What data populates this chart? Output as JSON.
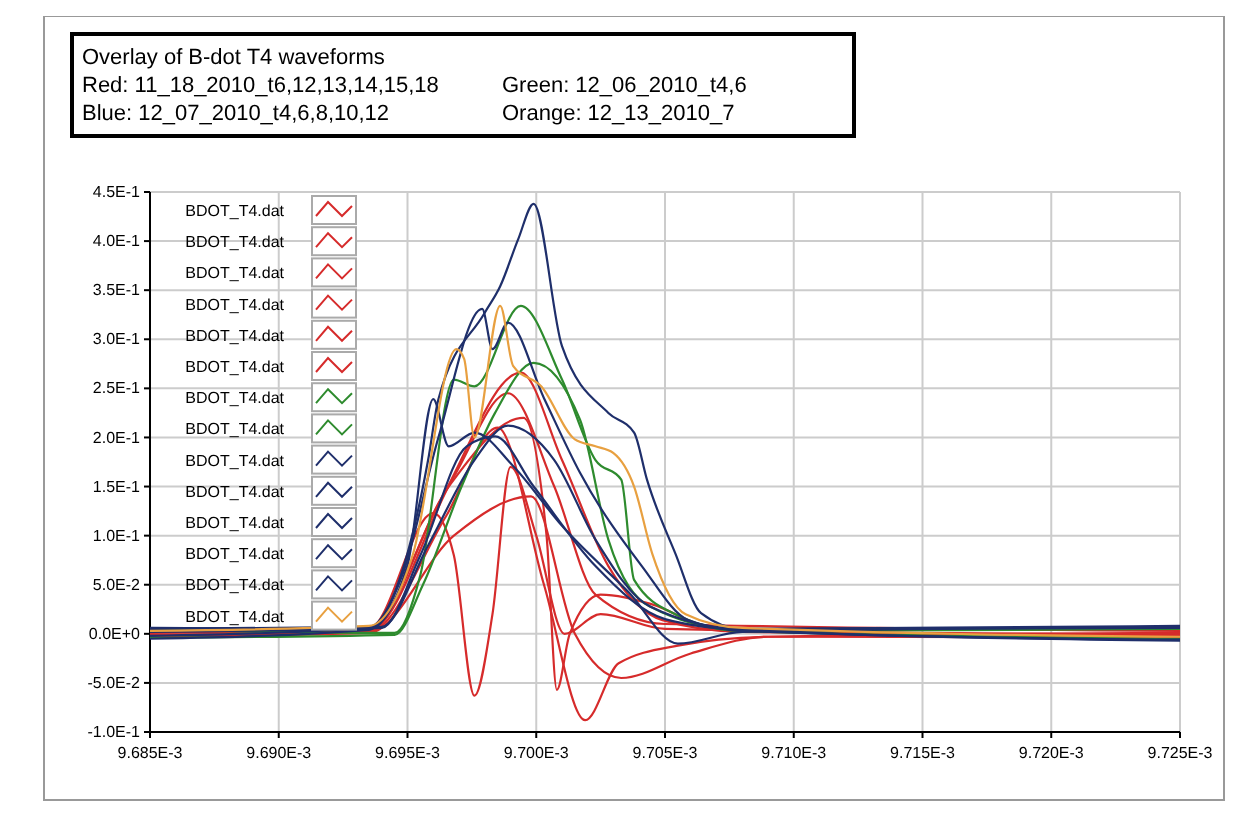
{
  "chart_data": {
    "type": "line",
    "title": "Overlay of B-dot T4 waveforms",
    "annotations": [
      "Red: 11_18_2010_t6,12,13,14,15,18",
      "Green: 12_06_2010_t4,6",
      "Blue: 12_07_2010_t4,6,8,10,12",
      "Orange: 12_13_2010_7"
    ],
    "xlim": [
      0.009685,
      0.009725
    ],
    "xticks": [
      {
        "value": 0.009685,
        "label": "9.685E-3"
      },
      {
        "value": 0.00969,
        "label": "9.690E-3"
      },
      {
        "value": 0.009695,
        "label": "9.695E-3"
      },
      {
        "value": 0.0097,
        "label": "9.700E-3"
      },
      {
        "value": 0.009705,
        "label": "9.705E-3"
      },
      {
        "value": 0.00971,
        "label": "9.710E-3"
      },
      {
        "value": 0.009715,
        "label": "9.715E-3"
      },
      {
        "value": 0.00972,
        "label": "9.720E-3"
      },
      {
        "value": 0.009725,
        "label": "9.725E-3"
      }
    ],
    "ylim": [
      -0.1,
      0.45
    ],
    "yticks": [
      {
        "value": 0.45,
        "label": "4.5E-1"
      },
      {
        "value": 0.4,
        "label": "4.0E-1"
      },
      {
        "value": 0.35,
        "label": "3.5E-1"
      },
      {
        "value": 0.3,
        "label": "3.0E-1"
      },
      {
        "value": 0.25,
        "label": "2.5E-1"
      },
      {
        "value": 0.2,
        "label": "2.0E-1"
      },
      {
        "value": 0.15,
        "label": "1.5E-1"
      },
      {
        "value": 0.1,
        "label": "1.0E-1"
      },
      {
        "value": 0.05,
        "label": "5.0E-2"
      },
      {
        "value": 0,
        "label": "0.0E+0"
      },
      {
        "value": -0.05,
        "label": "-5.0E-2"
      },
      {
        "value": -0.1,
        "label": "-1.0E-1"
      }
    ],
    "grid": true,
    "legend": "top left",
    "marker": "none",
    "line_style": "solid",
    "series": [
      {
        "name": "BDOT_T4.dat",
        "color": "#d62b2b",
        "x": [
          0.009685,
          0.0096935,
          0.0096963,
          0.0096994,
          0.009701,
          0.0097028,
          0.0097049,
          0.009708,
          0.009725
        ],
        "values": [
          0.002,
          0.004,
          0.137,
          0.266,
          0.177,
          0.069,
          0.014,
          0.002,
          -0.002
        ]
      },
      {
        "name": "BDOT_T4.dat",
        "color": "#d62b2b",
        "x": [
          0.009685,
          0.0096935,
          0.0096968,
          0.0096989,
          0.0097007,
          0.0097023,
          0.009705,
          0.009725
        ],
        "values": [
          -0.002,
          0.003,
          0.16,
          0.245,
          0.15,
          0.04,
          0.01,
          0.003
        ]
      },
      {
        "name": "BDOT_T4.dat",
        "color": "#d62b2b",
        "x": [
          0.009685,
          0.0096935,
          0.009696,
          0.0096968,
          0.0096976,
          0.0096983,
          0.009699,
          0.0097,
          0.0097011,
          0.0097025,
          0.009705,
          0.009725
        ],
        "values": [
          0.001,
          0.005,
          0.123,
          0.08,
          -0.063,
          0.02,
          0.17,
          0.1,
          0,
          0.02,
          0.005,
          -0.001
        ]
      },
      {
        "name": "BDOT_T4.dat",
        "color": "#d62b2b",
        "x": [
          0.009685,
          0.0096935,
          0.0096965,
          0.0096985,
          0.0097003,
          0.0097019,
          0.0097032,
          0.0097055,
          0.009709,
          0.009725
        ],
        "values": [
          -0.001,
          0.002,
          0.12,
          0.21,
          0.05,
          -0.088,
          -0.03,
          -0.012,
          -0.003,
          0.001
        ]
      },
      {
        "name": "BDOT_T4.dat",
        "color": "#d62b2b",
        "x": [
          0.009685,
          0.0096935,
          0.0096966,
          0.0096995,
          0.0097004,
          0.0097008,
          0.0097013,
          0.0097025,
          0.0097045,
          0.009707,
          0.009725
        ],
        "values": [
          0.003,
          0.006,
          0.15,
          0.22,
          0.1,
          -0.057,
          0,
          0.04,
          0.03,
          0.005,
          0.004
        ]
      },
      {
        "name": "BDOT_T4.dat",
        "color": "#d62b2b",
        "x": [
          0.009685,
          0.0096935,
          0.0096968,
          0.0096998,
          0.0097015,
          0.0097033,
          0.009706,
          0.009709,
          0.009725
        ],
        "values": [
          -0.003,
          0.001,
          0.1,
          0.14,
          0,
          -0.045,
          -0.02,
          -0.003,
          -0.004
        ]
      },
      {
        "name": "BDOT_T4.dat",
        "color": "#2e8b2e",
        "x": [
          0.009685,
          0.0096945,
          0.0096955,
          0.0096968,
          0.0096976,
          0.0096994,
          0.009701,
          0.0097023,
          0.0097033,
          0.0097038,
          0.0097054,
          0.009708,
          0.009725
        ],
        "values": [
          0.004,
          0.001,
          0.06,
          0.259,
          0.252,
          0.334,
          0.259,
          0.177,
          0.157,
          0.055,
          0.02,
          0.003,
          0.005
        ]
      },
      {
        "name": "BDOT_T4.dat",
        "color": "#2e8b2e",
        "x": [
          0.009685,
          0.0096945,
          0.0096956,
          0.0096971,
          0.0096984,
          0.0096999,
          0.0097017,
          0.0097028,
          0.0097044,
          0.009708,
          0.009725
        ],
        "values": [
          -0.004,
          -0.001,
          0.05,
          0.15,
          0.225,
          0.276,
          0.218,
          0.096,
          0.028,
          0.003,
          -0.005
        ]
      },
      {
        "name": "BDOT_T4.dat",
        "color": "#1f2f6b",
        "x": [
          0.009685,
          0.0096935,
          0.0096945,
          0.009695,
          0.0096958,
          0.0096962,
          0.009698,
          0.0096986,
          0.0096993,
          0.0096999,
          0.009701,
          0.0097028,
          0.0097038,
          0.0097043,
          0.0097054,
          0.0097064,
          0.009708,
          0.009725
        ],
        "values": [
          0.005,
          0.007,
          0.042,
          0.082,
          0.177,
          0.239,
          0.327,
          0.354,
          0.402,
          0.438,
          0.293,
          0.225,
          0.205,
          0.157,
          0.082,
          0.021,
          0.005,
          0.006
        ]
      },
      {
        "name": "BDOT_T4.dat",
        "color": "#1f2f6b",
        "x": [
          0.009685,
          0.0096935,
          0.0096948,
          0.0096962,
          0.0096979,
          0.0096983,
          0.0096989,
          0.0097003,
          0.0097017,
          0.0097041,
          0.0097059,
          0.009708,
          0.009725
        ],
        "values": [
          -0.005,
          0.004,
          0.06,
          0.2,
          0.331,
          0.29,
          0.317,
          0.24,
          0.164,
          0.069,
          0.014,
          0.003,
          -0.006
        ]
      },
      {
        "name": "BDOT_T4.dat",
        "color": "#1f2f6b",
        "x": [
          0.009685,
          0.0096935,
          0.009695,
          0.009696,
          0.0096966,
          0.0096976,
          0.0096991,
          0.009701,
          0.0097036,
          0.0097055,
          0.009708,
          0.009725
        ],
        "values": [
          0.006,
          0.005,
          0.07,
          0.239,
          0.191,
          0.205,
          0.171,
          0.11,
          0.042,
          -0.01,
          0.002,
          0.007
        ]
      },
      {
        "name": "BDOT_T4.dat",
        "color": "#1f2f6b",
        "x": [
          0.009685,
          0.009694,
          0.0096955,
          0.0096973,
          0.0096984,
          0.0096999,
          0.0097023,
          0.009705,
          0.009708,
          0.009725
        ],
        "values": [
          0.002,
          0.006,
          0.08,
          0.191,
          0.201,
          0.15,
          0.069,
          0.015,
          0.004,
          -0.007
        ]
      },
      {
        "name": "BDOT_T4.dat",
        "color": "#1f2f6b",
        "x": [
          0.009685,
          0.009694,
          0.0096958,
          0.0096976,
          0.0096989,
          0.0097007,
          0.0097023,
          0.0097044,
          0.009708,
          0.009725
        ],
        "values": [
          -0.002,
          0.007,
          0.09,
          0.177,
          0.212,
          0.177,
          0.096,
          0.028,
          0.005,
          0.008
        ]
      },
      {
        "name": "BDOT_T4.dat",
        "color": "#e8a040",
        "x": [
          0.009685,
          0.0096935,
          0.0096952,
          0.0096969,
          0.0096972,
          0.0096976,
          0.0096986,
          0.0096991,
          0.0097002,
          0.0097015,
          0.0097023,
          0.009703,
          0.0097038,
          0.0097045,
          0.0097058,
          0.009708,
          0.009725
        ],
        "values": [
          0.003,
          0.008,
          0.08,
          0.29,
          0.28,
          0.2,
          0.334,
          0.273,
          0.252,
          0.198,
          0.191,
          0.184,
          0.15,
          0.082,
          0.02,
          0.006,
          -0.003
        ]
      }
    ]
  }
}
